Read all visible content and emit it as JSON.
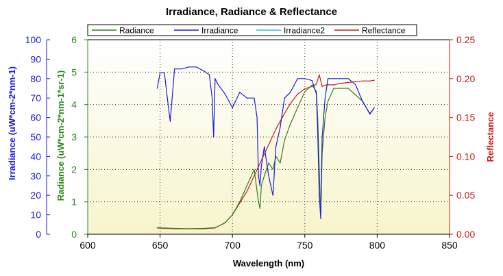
{
  "chart_data": {
    "type": "line",
    "title": "Irradiance, Radiance & Reflectance",
    "xlabel": "Wavelength (nm)",
    "ylabel_left_outer": "Irradiance (uW*cm-2*nm-1)",
    "ylabel_left_inner": "Radiance (uW*cm-2*nm-1*sr-1)",
    "ylabel_right": "Reflectance",
    "xlim": [
      600,
      850
    ],
    "x_ticks": [
      "600",
      "650",
      "700",
      "750",
      "800",
      "850"
    ],
    "irradiance_axis": {
      "ylim": [
        0,
        100
      ],
      "ticks": [
        "0",
        "10",
        "20",
        "30",
        "40",
        "50",
        "60",
        "70",
        "80",
        "90",
        "100"
      ]
    },
    "radiance_axis": {
      "ylim": [
        0,
        6
      ],
      "ticks": [
        "0",
        "1",
        "2",
        "3",
        "4",
        "5",
        "6"
      ]
    },
    "reflectance_axis": {
      "ylim": [
        0,
        0.25
      ],
      "ticks": [
        "0.00",
        "0.05",
        "0.10",
        "0.15",
        "0.20",
        "0.25"
      ]
    },
    "grid": true,
    "legend": "top",
    "colors": {
      "radiance": "#2e7d1e",
      "irradiance": "#1a1adc",
      "irradiance2": "#22c8d8",
      "reflectance": "#c41a1a",
      "irradiance_axis": "#1a1adc",
      "radiance_axis": "#2a8a1a",
      "reflectance_axis": "#c41a1a",
      "plot_bg_top": "#ffffff",
      "plot_bg_bottom": "#f7f4cc"
    },
    "series": [
      {
        "name": "Radiance",
        "axis": "radiance",
        "x": [
          648,
          660,
          670,
          680,
          688,
          695,
          700,
          705,
          710,
          715,
          718,
          719,
          720,
          722,
          725,
          728,
          730,
          733,
          736,
          740,
          745,
          750,
          755,
          758,
          759,
          760,
          761,
          762,
          764,
          766,
          770,
          775,
          780,
          785,
          790,
          795,
          798
        ],
        "values": [
          0.2,
          0.18,
          0.17,
          0.18,
          0.2,
          0.35,
          0.6,
          1.0,
          1.5,
          2.0,
          1.0,
          0.8,
          1.5,
          1.8,
          2.2,
          2.0,
          2.4,
          2.2,
          2.9,
          3.4,
          3.9,
          4.4,
          4.6,
          4.4,
          3.5,
          2.0,
          0.6,
          2.5,
          3.6,
          4.1,
          4.5,
          4.5,
          4.5,
          4.3,
          4.1,
          3.7,
          3.9
        ]
      },
      {
        "name": "Irradiance",
        "axis": "irradiance",
        "x": [
          648,
          650,
          653,
          655,
          657,
          660,
          665,
          670,
          675,
          680,
          684,
          686,
          687,
          688,
          690,
          695,
          700,
          705,
          710,
          715,
          717,
          718,
          719,
          720,
          722,
          725,
          728,
          730,
          733,
          736,
          740,
          745,
          750,
          755,
          758,
          759,
          760,
          761,
          762,
          764,
          766,
          770,
          775,
          780,
          785,
          790,
          795,
          798
        ],
        "values": [
          75,
          83,
          83,
          70,
          58,
          85,
          85,
          86,
          86,
          84,
          82,
          70,
          50,
          80,
          77,
          72,
          65,
          73,
          70,
          70,
          60,
          30,
          25,
          35,
          45,
          30,
          20,
          45,
          55,
          70,
          73,
          80,
          80,
          79,
          72,
          50,
          20,
          8,
          50,
          70,
          80,
          80,
          80,
          80,
          77,
          68,
          62,
          65
        ]
      },
      {
        "name": "Irradiance2",
        "axis": "irradiance",
        "x": [],
        "values": []
      },
      {
        "name": "Reflectance",
        "axis": "reflectance",
        "x": [
          648,
          660,
          670,
          680,
          688,
          695,
          700,
          705,
          710,
          715,
          720,
          725,
          730,
          735,
          740,
          745,
          750,
          755,
          758,
          760,
          762,
          765,
          770,
          775,
          780,
          785,
          790,
          795,
          798
        ],
        "values": [
          0.008,
          0.007,
          0.007,
          0.007,
          0.008,
          0.015,
          0.025,
          0.04,
          0.055,
          0.075,
          0.095,
          0.115,
          0.135,
          0.152,
          0.168,
          0.18,
          0.187,
          0.19,
          0.193,
          0.205,
          0.19,
          0.192,
          0.192,
          0.194,
          0.195,
          0.196,
          0.197,
          0.197,
          0.198
        ]
      }
    ]
  }
}
